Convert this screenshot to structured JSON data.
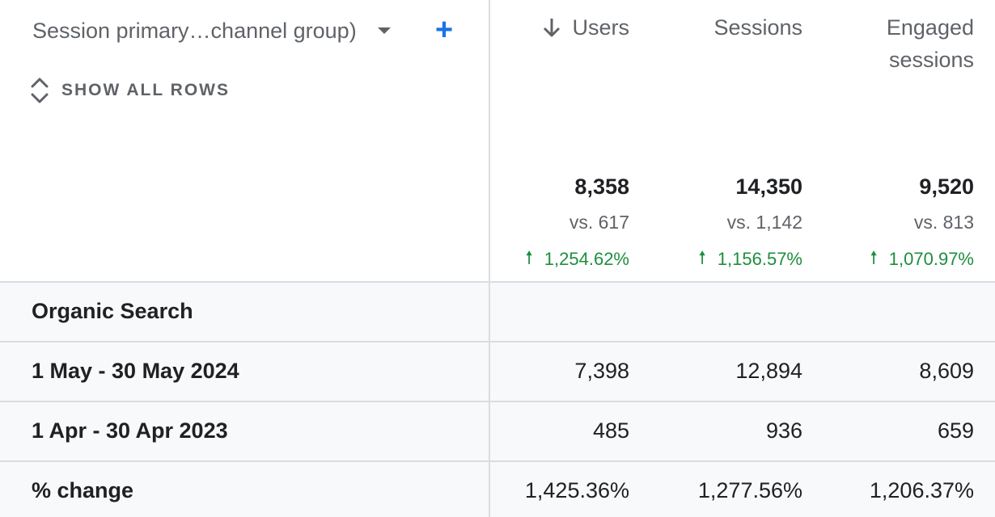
{
  "header": {
    "dimension_label": "Session primary…channel group)",
    "show_all_rows_label": "SHOW ALL ROWS",
    "columns": {
      "users": "Users",
      "sessions": "Sessions",
      "engaged_line1": "Engaged",
      "engaged_line2": "sessions"
    }
  },
  "totals": {
    "users": {
      "value": "8,358",
      "vs": "vs. 617",
      "change": "1,254.62%"
    },
    "sessions": {
      "value": "14,350",
      "vs": "vs. 1,142",
      "change": "1,156.57%"
    },
    "engaged": {
      "value": "9,520",
      "vs": "vs. 813",
      "change": "1,070.97%"
    }
  },
  "group": {
    "label": "Organic Search"
  },
  "rows": [
    {
      "label": "1 May - 30 May 2024",
      "users": "7,398",
      "sessions": "12,894",
      "engaged": "8,609"
    },
    {
      "label": "1 Apr - 30 Apr 2023",
      "users": "485",
      "sessions": "936",
      "engaged": "659"
    },
    {
      "label": "% change",
      "users": "1,425.36%",
      "sessions": "1,277.56%",
      "engaged": "1,206.37%"
    }
  ],
  "colors": {
    "accent": "#1a73e8",
    "positive": "#1e8e3e",
    "muted": "#5f6368",
    "grid": "#dadce0"
  }
}
